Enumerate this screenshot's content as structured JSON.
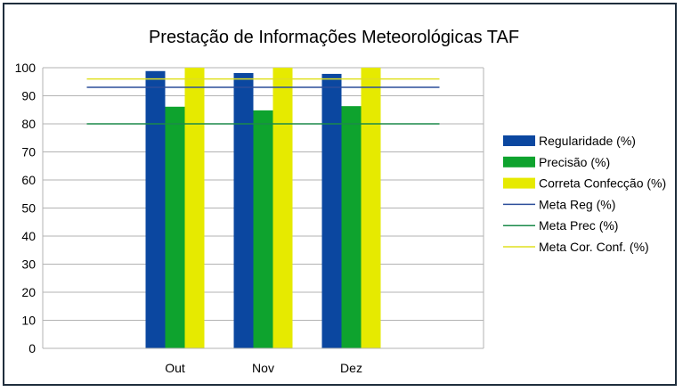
{
  "chart_data": {
    "type": "bar",
    "title": "Prestação de Informações Meteorológicas TAF",
    "xlabel": "",
    "ylabel": "",
    "ylim": [
      0,
      100
    ],
    "yticks": [
      0,
      10,
      20,
      30,
      40,
      50,
      60,
      70,
      80,
      90,
      100
    ],
    "categories": [
      "Out",
      "Nov",
      "Dez"
    ],
    "series": [
      {
        "name": "Regularidade (%)",
        "values": [
          98.8,
          98.1,
          97.8
        ],
        "color": "#0b47a0"
      },
      {
        "name": "Precisão (%)",
        "values": [
          86.1,
          84.8,
          86.3
        ],
        "color": "#0ea32e"
      },
      {
        "name": "Correta Confecção (%)",
        "values": [
          100,
          100,
          100
        ],
        "color": "#e6ea00"
      }
    ],
    "target_lines": [
      {
        "name": "Meta Reg (%)",
        "value": 93,
        "color": "#2c4f9a"
      },
      {
        "name": "Meta Prec (%)",
        "value": 80,
        "color": "#1b8a4a"
      },
      {
        "name": "Meta Cor. Conf. (%)",
        "value": 96,
        "color": "#e0e020"
      }
    ],
    "grid": true,
    "legend": "right"
  }
}
